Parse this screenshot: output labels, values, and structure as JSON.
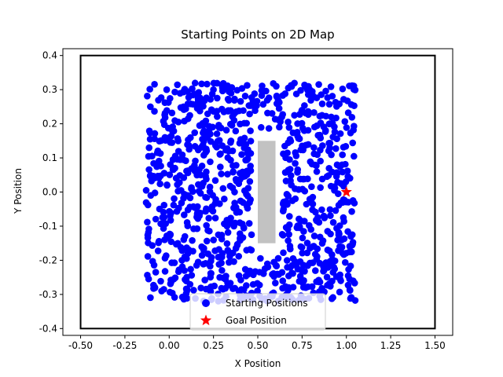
{
  "chart_data": {
    "type": "scatter",
    "title": "Starting Points on 2D Map",
    "xlabel": "X Position",
    "ylabel": "Y Position",
    "xlim": [
      -0.6,
      1.6
    ],
    "ylim": [
      -0.42,
      0.42
    ],
    "xticks": [
      "-0.50",
      "-0.25",
      "0.00",
      "0.25",
      "0.50",
      "0.75",
      "1.00",
      "1.25",
      "1.50"
    ],
    "yticks": [
      "-0.4",
      "-0.3",
      "-0.2",
      "-0.1",
      "0.0",
      "0.1",
      "0.2",
      "0.3",
      "0.4"
    ],
    "grid": false,
    "legend_position": "bottom-center",
    "boundary": {
      "x": [
        -0.5,
        1.5
      ],
      "y": [
        -0.4,
        0.4
      ],
      "color": "#000000"
    },
    "obstacle": {
      "x": [
        0.5,
        0.6
      ],
      "y": [
        -0.15,
        0.15
      ],
      "color": "#bfbfbf"
    },
    "starting_region": {
      "x": [
        -0.13,
        1.05
      ],
      "y": [
        -0.32,
        0.32
      ]
    },
    "series": [
      {
        "name": "Starting Positions",
        "marker": "circle",
        "color": "#0000ff",
        "point_count": 1000
      },
      {
        "name": "Goal Position",
        "marker": "star",
        "color": "#ff0000",
        "points": [
          [
            1.0,
            0.0
          ]
        ]
      }
    ]
  }
}
